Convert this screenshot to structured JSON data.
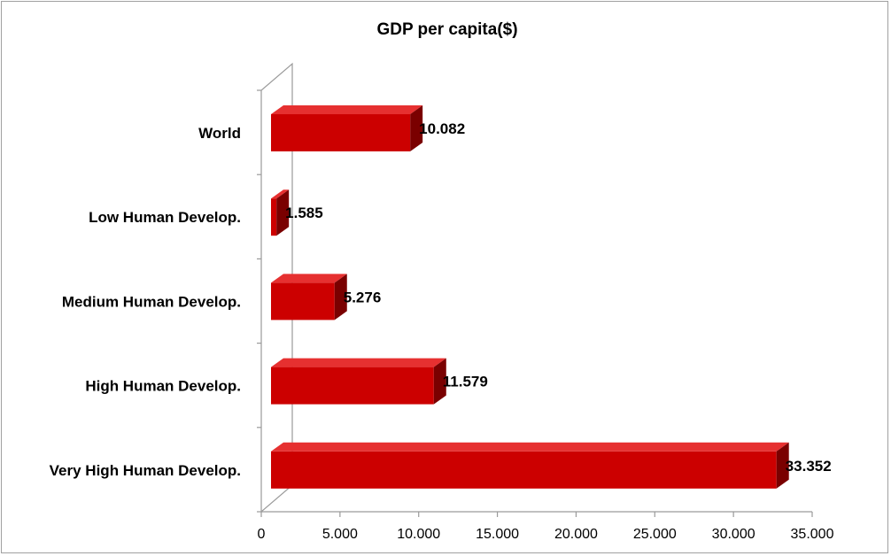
{
  "chart_data": {
    "type": "bar",
    "orientation": "horizontal",
    "three_d": true,
    "title": "GDP per capita($)",
    "categories": [
      "World",
      "Low Human Develop.",
      "Medium Human Develop.",
      "High Human Develop.",
      "Very High Human Develop."
    ],
    "values": [
      10082,
      1585,
      5276,
      11579,
      33352
    ],
    "data_labels": [
      "10.082",
      "1.585",
      "5.276",
      "11.579",
      "33.352"
    ],
    "x_ticks": [
      0,
      5000,
      10000,
      15000,
      20000,
      25000,
      30000,
      35000
    ],
    "x_tick_labels": [
      "0",
      "5.000",
      "10.000",
      "15.000",
      "20.000",
      "25.000",
      "30.000",
      "35.000"
    ],
    "xlim": [
      0,
      35000
    ],
    "grid": false,
    "legend": "none",
    "bar_color": "#cc0000",
    "bar_top_color": "#e63030",
    "bar_side_color": "#7a0000"
  }
}
